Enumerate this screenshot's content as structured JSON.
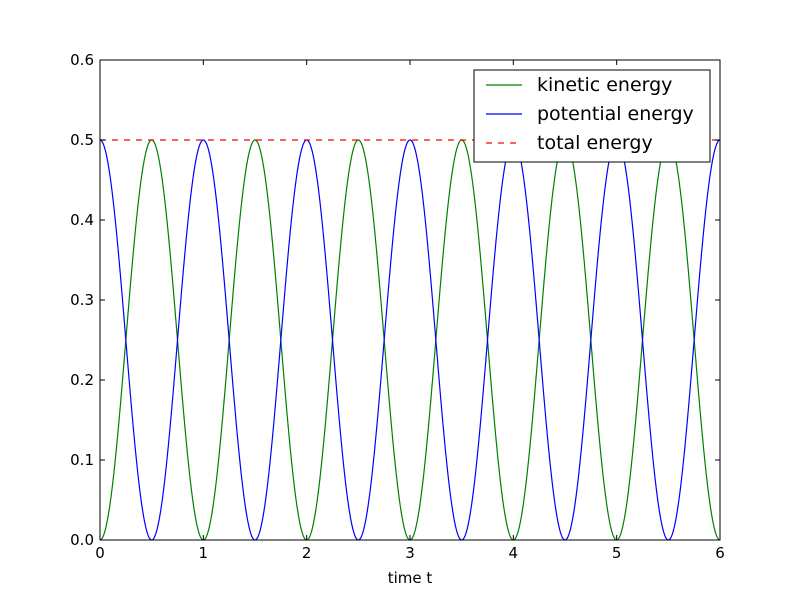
{
  "chart_data": {
    "type": "line",
    "xlabel": "time t",
    "ylabel": "",
    "title": "",
    "xlim": [
      0,
      6
    ],
    "ylim": [
      0,
      0.6
    ],
    "xticks": [
      "0",
      "1",
      "2",
      "3",
      "4",
      "5",
      "6"
    ],
    "yticks": [
      "0.0",
      "0.1",
      "0.2",
      "0.3",
      "0.4",
      "0.5",
      "0.6"
    ],
    "grid": false,
    "legend_position": "top-right",
    "series": [
      {
        "name": "kinetic energy",
        "color": "#008000",
        "style": "solid",
        "function": "0.5*sin^2(pi*t)",
        "x": [
          0,
          0.125,
          0.25,
          0.375,
          0.5,
          0.625,
          0.75,
          0.875,
          1
        ],
        "y": [
          0,
          0.073,
          0.25,
          0.427,
          0.5,
          0.427,
          0.25,
          0.073,
          0
        ],
        "period": 1
      },
      {
        "name": "potential energy",
        "color": "#0000ff",
        "style": "solid",
        "function": "0.5*cos^2(pi*t)",
        "x": [
          0,
          0.125,
          0.25,
          0.375,
          0.5,
          0.625,
          0.75,
          0.875,
          1
        ],
        "y": [
          0.5,
          0.427,
          0.25,
          0.073,
          0,
          0.073,
          0.25,
          0.427,
          0.5
        ],
        "period": 1
      },
      {
        "name": "total energy",
        "color": "#ff0000",
        "style": "dashed",
        "x": [
          0,
          6
        ],
        "y": [
          0.5,
          0.5
        ]
      }
    ]
  }
}
